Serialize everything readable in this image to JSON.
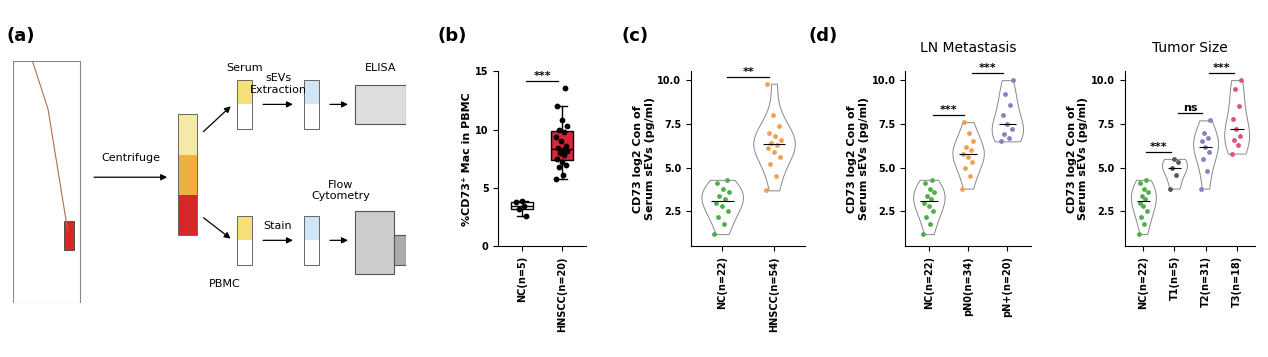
{
  "panel_labels": [
    "(a)",
    "(b)",
    "(c)",
    "(d)"
  ],
  "diagram": {
    "labels": {
      "centrifuge": "Centrifuge",
      "serum": "Serum",
      "sevs": "sEVs\nExtraction",
      "elisa": "ELISA",
      "pbmc": "PBMC",
      "stain": "Stain",
      "flow": "Flow\nCytometry"
    }
  },
  "chart_data": [
    {
      "type": "box",
      "title": "",
      "y_label": "%CD73⁺ Mac in PBMC",
      "categories": [
        "NC(n=5)",
        "HNSCC(n=20)"
      ],
      "values": [
        [
          3.8,
          3.5,
          3.2,
          2.6,
          3.9
        ],
        [
          5.8,
          6.1,
          6.8,
          7.0,
          7.2,
          7.5,
          7.8,
          8.0,
          8.2,
          8.3,
          8.4,
          8.6,
          9.0,
          9.4,
          9.8,
          10.0,
          10.3,
          10.8,
          12.0,
          13.6
        ]
      ],
      "colors": [
        "#ffffff",
        "#d7263d"
      ],
      "ylim": [
        0,
        15
      ],
      "yticks": [
        0,
        5,
        10,
        15
      ],
      "comparisons": [
        {
          "groups": [
            0,
            1
          ],
          "label": "***"
        }
      ]
    },
    {
      "type": "violin",
      "title": "",
      "y_label": "CD73 log2 Con of\nSerum sEVs (pg/ml)",
      "categories": [
        "NC(n=22)",
        "HNSCC(n=54)"
      ],
      "values": [
        [
          1.2,
          1.8,
          2.2,
          2.5,
          2.8,
          3.0,
          3.2,
          3.4,
          3.6,
          3.8,
          4.1,
          4.3
        ],
        [
          3.7,
          4.5,
          5.2,
          5.6,
          5.9,
          6.1,
          6.3,
          6.4,
          6.6,
          6.8,
          7.0,
          7.4,
          8.0,
          9.8
        ]
      ],
      "colors": [
        "#4daf4a",
        "#f0a050"
      ],
      "ylim": [
        0.5,
        10.5
      ],
      "yticks": [
        {
          "value": 2.5,
          "label": "2.5"
        },
        {
          "value": 5,
          "label": "5.0"
        },
        {
          "value": 7.5,
          "label": "7.5"
        },
        {
          "value": 10,
          "label": "10.0"
        }
      ],
      "comparisons": [
        {
          "groups": [
            0,
            1
          ],
          "label": "**"
        }
      ]
    },
    {
      "type": "violin",
      "title": "LN Metastasis",
      "y_label": "CD73 log2 Con of\nSerum sEVs (pg/ml)",
      "categories": [
        "NC(n=22)",
        "pN0(n=34)",
        "pN+(n=20)"
      ],
      "values": [
        [
          1.2,
          1.8,
          2.2,
          2.5,
          2.8,
          3.0,
          3.2,
          3.4,
          3.6,
          3.8,
          4.1,
          4.3
        ],
        [
          3.8,
          4.5,
          5.0,
          5.3,
          5.6,
          5.8,
          6.0,
          6.2,
          6.5,
          7.0,
          7.6
        ],
        [
          6.5,
          6.7,
          6.9,
          7.2,
          7.5,
          8.0,
          8.6,
          9.2,
          10.0
        ]
      ],
      "colors": [
        "#4daf4a",
        "#f0a050",
        "#8a7fc0"
      ],
      "ylim": [
        0.5,
        10.5
      ],
      "yticks": [
        {
          "value": 2.5,
          "label": "2.5"
        },
        {
          "value": 5,
          "label": "5.0"
        },
        {
          "value": 7.5,
          "label": "7.5"
        },
        {
          "value": 10,
          "label": "10.0"
        }
      ],
      "comparisons": [
        {
          "groups": [
            0,
            1
          ],
          "label": "***"
        },
        {
          "groups": [
            1,
            2
          ],
          "label": "***"
        }
      ]
    },
    {
      "type": "violin",
      "title": "Tumor Size",
      "y_label": "CD73 log2 Con of\nSerum sEVs (pg/ml)",
      "categories": [
        "NC(n=22)",
        "T1(n=5)",
        "T2(n=31)",
        "T3(n=18)"
      ],
      "values": [
        [
          1.2,
          1.8,
          2.2,
          2.5,
          2.8,
          3.0,
          3.2,
          3.4,
          3.6,
          3.8,
          4.1,
          4.3
        ],
        [
          3.8,
          4.6,
          5.0,
          5.3,
          5.5
        ],
        [
          3.8,
          4.8,
          5.5,
          5.9,
          6.2,
          6.5,
          6.7,
          7.0,
          7.7
        ],
        [
          5.8,
          6.3,
          6.6,
          6.8,
          7.2,
          7.8,
          8.5,
          9.5,
          10.0
        ]
      ],
      "colors": [
        "#4daf4a",
        "#555555",
        "#8a7fc0",
        "#e05080"
      ],
      "ylim": [
        0.5,
        10.5
      ],
      "yticks": [
        {
          "value": 2.5,
          "label": "2.5"
        },
        {
          "value": 5,
          "label": "5.0"
        },
        {
          "value": 7.5,
          "label": "7.5"
        },
        {
          "value": 10,
          "label": "10.0"
        }
      ],
      "comparisons": [
        {
          "groups": [
            0,
            1
          ],
          "label": "***"
        },
        {
          "groups": [
            1,
            2
          ],
          "label": "ns"
        },
        {
          "groups": [
            2,
            3
          ],
          "label": "***"
        }
      ]
    }
  ]
}
